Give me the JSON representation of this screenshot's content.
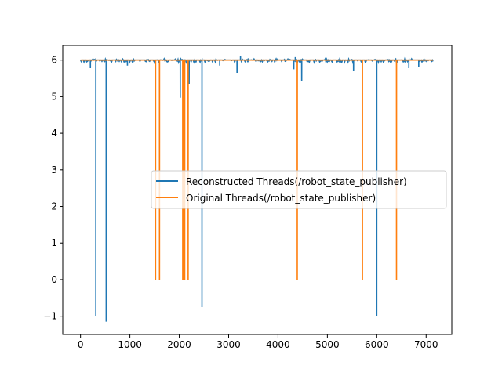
{
  "chart_data": {
    "type": "line",
    "title": "",
    "xlabel": "",
    "ylabel": "",
    "xlim": [
      -360,
      7520
    ],
    "ylim": [
      -1.5,
      6.4
    ],
    "x_ticks": [
      0,
      1000,
      2000,
      3000,
      4000,
      5000,
      6000,
      7000
    ],
    "y_ticks": [
      -1,
      0,
      1,
      2,
      3,
      4,
      5,
      6
    ],
    "x_tick_labels": [
      "0",
      "1000",
      "2000",
      "3000",
      "4000",
      "5000",
      "6000",
      "7000"
    ],
    "y_tick_labels": [
      "−1",
      "0",
      "1",
      "2",
      "3",
      "4",
      "5",
      "6"
    ],
    "grid": false,
    "legend_position": "center-right",
    "series": [
      {
        "name": "Reconstructed Threads(/robot_state_publisher)",
        "color": "#1f77b4",
        "baseline": 6.0,
        "x_range": [
          0,
          7150
        ],
        "noise_amplitude": 0.06,
        "spikes": [
          {
            "x": 200,
            "y": 5.78
          },
          {
            "x": 310,
            "y": -1.0
          },
          {
            "x": 520,
            "y": -1.15
          },
          {
            "x": 950,
            "y": 5.85
          },
          {
            "x": 1500,
            "y": 5.9
          },
          {
            "x": 2020,
            "y": 4.97
          },
          {
            "x": 2080,
            "y": 5.7
          },
          {
            "x": 2200,
            "y": 5.35
          },
          {
            "x": 2460,
            "y": -0.75
          },
          {
            "x": 2820,
            "y": 5.85
          },
          {
            "x": 3170,
            "y": 5.65
          },
          {
            "x": 4320,
            "y": 5.75
          },
          {
            "x": 4480,
            "y": 5.42
          },
          {
            "x": 5530,
            "y": 5.7
          },
          {
            "x": 6000,
            "y": -1.0
          },
          {
            "x": 6650,
            "y": 5.78
          },
          {
            "x": 6850,
            "y": 5.82
          },
          {
            "x": 3240,
            "y": 6.1
          },
          {
            "x": 4350,
            "y": 6.08
          }
        ]
      },
      {
        "name": "Original Threads(/robot_state_publisher)",
        "color": "#ff7f0e",
        "baseline": 6.0,
        "x_range": [
          0,
          7150
        ],
        "noise_amplitude": 0.0,
        "spikes": [
          {
            "x": 1520,
            "y": 0
          },
          {
            "x": 1600,
            "y": 0
          },
          {
            "x": 2070,
            "y": 0
          },
          {
            "x": 2090,
            "y": 0
          },
          {
            "x": 2110,
            "y": 0
          },
          {
            "x": 2180,
            "y": 0
          },
          {
            "x": 4390,
            "y": 0
          },
          {
            "x": 5710,
            "y": 0
          },
          {
            "x": 6400,
            "y": 0
          }
        ]
      }
    ]
  }
}
